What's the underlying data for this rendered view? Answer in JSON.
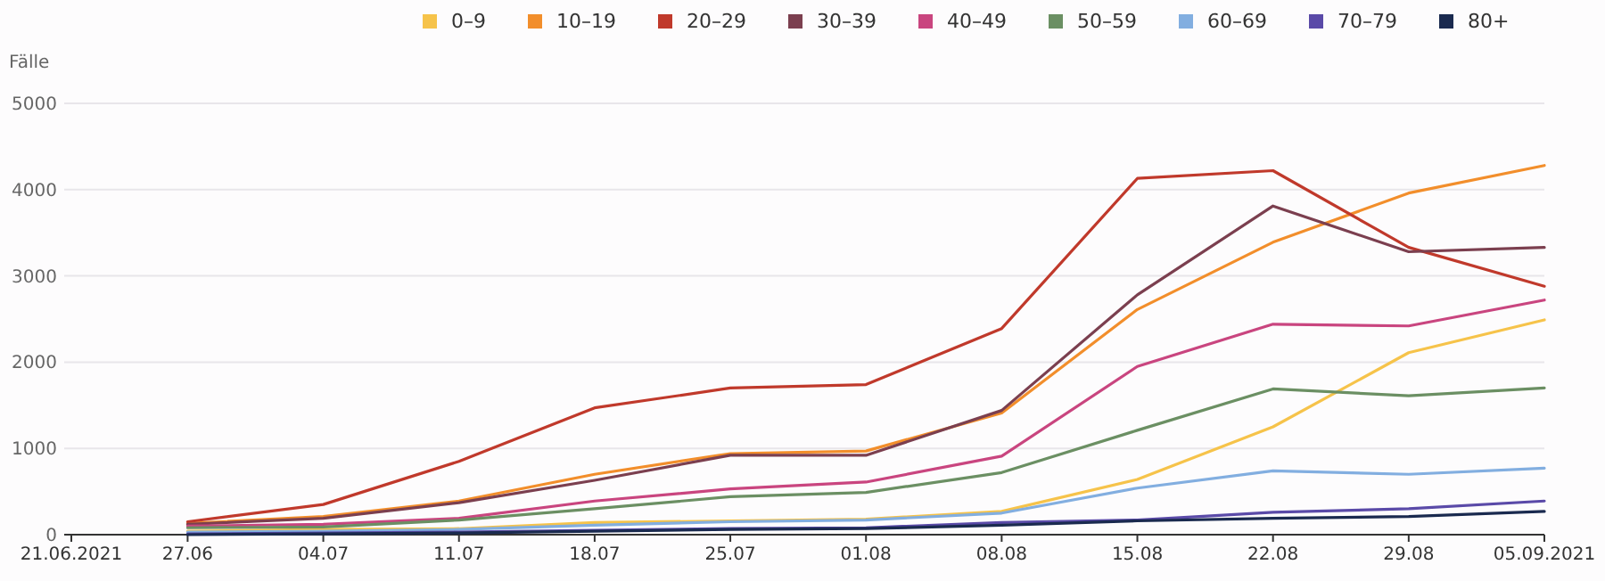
{
  "chart_data": {
    "type": "line",
    "ylabel": "Fälle",
    "x": [
      "2021-06-27",
      "2021-07-04",
      "2021-07-11",
      "2021-07-18",
      "2021-07-25",
      "2021-08-01",
      "2021-08-08",
      "2021-08-15",
      "2021-08-22",
      "2021-08-29",
      "2021-09-05"
    ],
    "xlim": [
      "2021-06-21",
      "2021-09-05"
    ],
    "xticks": [
      {
        "value": "2021-06-21",
        "label": "21.06.2021"
      },
      {
        "value": "2021-06-27",
        "label": "27.06"
      },
      {
        "value": "2021-07-04",
        "label": "04.07"
      },
      {
        "value": "2021-07-11",
        "label": "11.07"
      },
      {
        "value": "2021-07-18",
        "label": "18.07"
      },
      {
        "value": "2021-07-25",
        "label": "25.07"
      },
      {
        "value": "2021-08-01",
        "label": "01.08"
      },
      {
        "value": "2021-08-08",
        "label": "08.08"
      },
      {
        "value": "2021-08-15",
        "label": "15.08"
      },
      {
        "value": "2021-08-22",
        "label": "22.08"
      },
      {
        "value": "2021-08-29",
        "label": "29.08"
      },
      {
        "value": "2021-09-05",
        "label": "05.09.2021"
      }
    ],
    "ylim": [
      0,
      5000
    ],
    "yticks": [
      0,
      1000,
      2000,
      3000,
      4000,
      5000
    ],
    "grid": "y",
    "legend": "top right",
    "marker": "none",
    "line_style": "solid",
    "series": [
      {
        "name": "0–9",
        "color": "#f6c34a",
        "values": [
          40,
          60,
          70,
          140,
          160,
          180,
          270,
          640,
          1250,
          2110,
          2490
        ]
      },
      {
        "name": "10–19",
        "color": "#f28e2b",
        "values": [
          130,
          210,
          390,
          700,
          940,
          970,
          1410,
          2610,
          3390,
          3960,
          4280
        ]
      },
      {
        "name": "20–29",
        "color": "#c0392b",
        "values": [
          150,
          350,
          850,
          1470,
          1700,
          1740,
          2390,
          4130,
          4220,
          3330,
          2880
        ]
      },
      {
        "name": "30–39",
        "color": "#7b3f4f",
        "values": [
          120,
          190,
          370,
          630,
          920,
          920,
          1440,
          2780,
          3810,
          3280,
          3330
        ]
      },
      {
        "name": "40–49",
        "color": "#c9457f",
        "values": [
          100,
          120,
          190,
          390,
          530,
          610,
          910,
          1950,
          2440,
          2420,
          2720
        ]
      },
      {
        "name": "50–59",
        "color": "#6b8f63",
        "values": [
          80,
          90,
          170,
          300,
          440,
          490,
          720,
          1210,
          1690,
          1610,
          1700
        ]
      },
      {
        "name": "60–69",
        "color": "#82aee0",
        "values": [
          30,
          40,
          60,
          110,
          150,
          170,
          250,
          540,
          740,
          700,
          770
        ]
      },
      {
        "name": "70–79",
        "color": "#5a4aa8",
        "values": [
          10,
          20,
          30,
          50,
          70,
          80,
          140,
          170,
          260,
          300,
          390
        ]
      },
      {
        "name": "80+",
        "color": "#1a2a4f",
        "values": [
          0,
          10,
          20,
          40,
          60,
          70,
          110,
          160,
          190,
          210,
          270
        ]
      }
    ]
  }
}
